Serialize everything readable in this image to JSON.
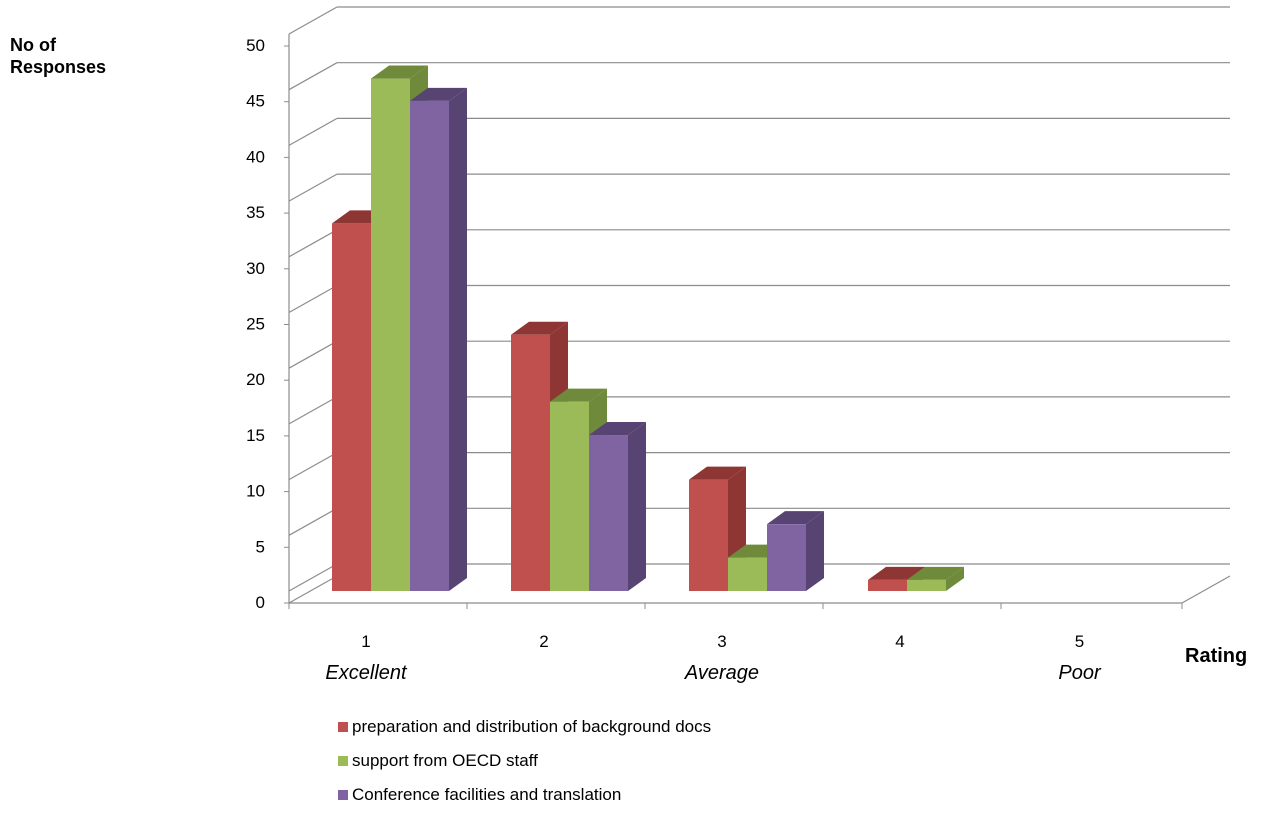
{
  "chart_data": {
    "type": "bar",
    "ylabel": "No of\nResponses",
    "xlabel": "Rating",
    "ylim": [
      0,
      50
    ],
    "yticks": [
      0,
      5,
      10,
      15,
      20,
      25,
      30,
      35,
      40,
      45,
      50
    ],
    "categories": [
      "1",
      "2",
      "3",
      "4",
      "5"
    ],
    "category_sublabels": [
      "Excellent",
      "",
      "Average",
      "",
      "Poor"
    ],
    "series": [
      {
        "name": "preparation and distribution of background docs",
        "values": [
          33,
          23,
          10,
          1,
          0
        ],
        "color": "#c0504d"
      },
      {
        "name": "support from OECD staff",
        "values": [
          46,
          17,
          3,
          1,
          0
        ],
        "color": "#9bbb59"
      },
      {
        "name": "Conference facilities and translation",
        "values": [
          44,
          14,
          6,
          0,
          0
        ],
        "color": "#8064a2"
      }
    ],
    "grid": true,
    "legend": "bottom"
  },
  "colors": {
    "series_dark": [
      "#8e3633",
      "#6f8a3b",
      "#574472"
    ],
    "grid": "#8c8c8c"
  }
}
